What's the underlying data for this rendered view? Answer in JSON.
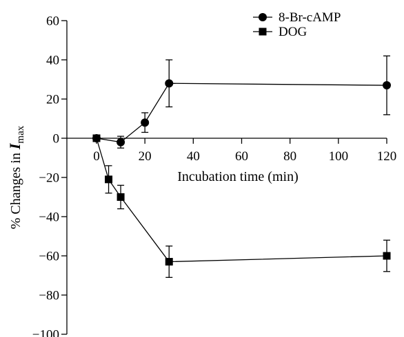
{
  "chart_data": {
    "type": "line",
    "xlabel": "Incubation time (min)",
    "ylabel_prefix": "% Changes in ",
    "ylabel_var": "I",
    "ylabel_sub": "max",
    "xlim": [
      0,
      120
    ],
    "ylim": [
      -100,
      60
    ],
    "xticks": [
      0,
      20,
      40,
      60,
      80,
      100,
      120
    ],
    "yticks": [
      60,
      40,
      20,
      0,
      -20,
      -40,
      -60,
      -80,
      -100
    ],
    "grid": false,
    "legend_position": "top-right",
    "series": [
      {
        "name": "8-Br-cAMP",
        "marker": "circle",
        "x": [
          0,
          10,
          20,
          30,
          120
        ],
        "y": [
          0,
          -2,
          8,
          28,
          27
        ],
        "err": [
          0,
          3,
          5,
          12,
          15
        ]
      },
      {
        "name": "DOG",
        "marker": "square",
        "x": [
          0,
          5,
          10,
          30,
          120
        ],
        "y": [
          0,
          -21,
          -30,
          -63,
          -60
        ],
        "err": [
          0,
          7,
          6,
          8,
          8
        ]
      }
    ]
  }
}
